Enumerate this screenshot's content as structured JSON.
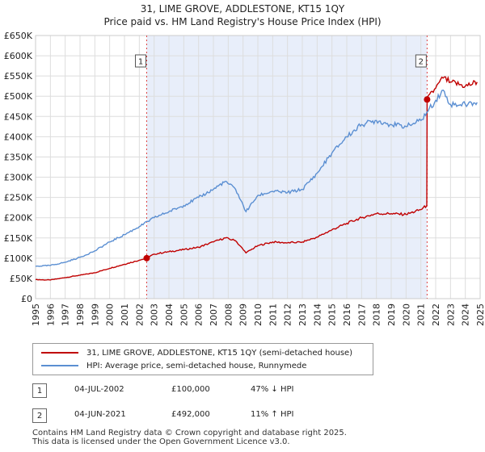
{
  "header": {
    "title": "31, LIME GROVE, ADDLESTONE, KT15 1QY",
    "subtitle": "Price paid vs. HM Land Registry's House Price Index (HPI)"
  },
  "colors": {
    "property_line": "#c00000",
    "hpi_line": "#5b8fd2",
    "shade": "#e8eefa",
    "grid": "#dddddd",
    "marker_line": "#dd4444"
  },
  "chart_data": {
    "type": "line",
    "title": "Price paid vs. HM Land Registry's House Price Index (HPI)",
    "x_range": [
      1995,
      2025
    ],
    "ylim": [
      0,
      650000
    ],
    "y_ticks": [
      {
        "value": 0,
        "label": "£0"
      },
      {
        "value": 50000,
        "label": "£50K"
      },
      {
        "value": 100000,
        "label": "£100K"
      },
      {
        "value": 150000,
        "label": "£150K"
      },
      {
        "value": 200000,
        "label": "£200K"
      },
      {
        "value": 250000,
        "label": "£250K"
      },
      {
        "value": 300000,
        "label": "£300K"
      },
      {
        "value": 350000,
        "label": "£350K"
      },
      {
        "value": 400000,
        "label": "£400K"
      },
      {
        "value": 450000,
        "label": "£450K"
      },
      {
        "value": 500000,
        "label": "£500K"
      },
      {
        "value": 550000,
        "label": "£550K"
      },
      {
        "value": 600000,
        "label": "£600K"
      },
      {
        "value": 650000,
        "label": "£650K"
      }
    ],
    "x_ticks": [
      "1995",
      "1996",
      "1997",
      "1998",
      "1999",
      "2000",
      "2001",
      "2002",
      "2003",
      "2004",
      "2005",
      "2006",
      "2007",
      "2008",
      "2009",
      "2010",
      "2011",
      "2012",
      "2013",
      "2014",
      "2015",
      "2016",
      "2017",
      "2018",
      "2019",
      "2020",
      "2021",
      "2022",
      "2023",
      "2024",
      "2025"
    ],
    "shaded_range": [
      2002.5,
      2021.42
    ],
    "markers": [
      {
        "label": "1",
        "x": 2002.5,
        "value": 100000
      },
      {
        "label": "2",
        "x": 2021.42,
        "value": 492000
      }
    ],
    "series": [
      {
        "name": "31, LIME GROVE, ADDLESTONE, KT15 1QY (semi-detached house)",
        "x": [
          1995,
          1996,
          1997,
          1998,
          1999,
          2000,
          2001,
          2002,
          2002.5,
          2003,
          2004,
          2005,
          2006,
          2007,
          2007.8,
          2008.5,
          2009.2,
          2010,
          2011,
          2012,
          2013,
          2014,
          2015,
          2016,
          2017,
          2018,
          2019,
          2020,
          2021,
          2021.4,
          2021.42,
          2022,
          2022.5,
          2023,
          2024,
          2024.8
        ],
        "values": [
          47000,
          46000,
          52000,
          58000,
          64000,
          75000,
          85000,
          95000,
          100000,
          110000,
          116000,
          121000,
          127000,
          140000,
          150000,
          143000,
          113000,
          131000,
          140000,
          138000,
          140000,
          152000,
          170000,
          186000,
          200000,
          210000,
          210000,
          208000,
          220000,
          230000,
          492000,
          520000,
          545000,
          535000,
          525000,
          535000
        ]
      },
      {
        "name": "HPI: Average price, semi-detached house, Runnymede",
        "x": [
          1995,
          1996,
          1997,
          1998,
          1999,
          2000,
          2001,
          2002,
          2003,
          2004,
          2005,
          2006,
          2007,
          2007.8,
          2008.5,
          2009.2,
          2010,
          2011,
          2012,
          2013,
          2014,
          2015,
          2016,
          2017,
          2018,
          2019,
          2020,
          2021,
          2021.4,
          2022,
          2022.5,
          2023,
          2024,
          2024.8
        ],
        "values": [
          80000,
          82000,
          90000,
          102000,
          118000,
          140000,
          158000,
          178000,
          200000,
          215000,
          230000,
          250000,
          270000,
          290000,
          270000,
          215000,
          255000,
          265000,
          262000,
          270000,
          310000,
          360000,
          400000,
          430000,
          440000,
          430000,
          425000,
          440000,
          460000,
          490000,
          515000,
          480000,
          480000,
          485000
        ]
      }
    ]
  },
  "legend": {
    "property_label": "31, LIME GROVE, ADDLESTONE, KT15 1QY (semi-detached house)",
    "hpi_label": "HPI: Average price, semi-detached house, Runnymede"
  },
  "transactions": [
    {
      "num": "1",
      "date": "04-JUL-2002",
      "price": "£100,000",
      "hpi": "47% ↓ HPI"
    },
    {
      "num": "2",
      "date": "04-JUN-2021",
      "price": "£492,000",
      "hpi": "11% ↑ HPI"
    }
  ],
  "footer": {
    "line1": "Contains HM Land Registry data © Crown copyright and database right 2025.",
    "line2": "This data is licensed under the Open Government Licence v3.0."
  }
}
